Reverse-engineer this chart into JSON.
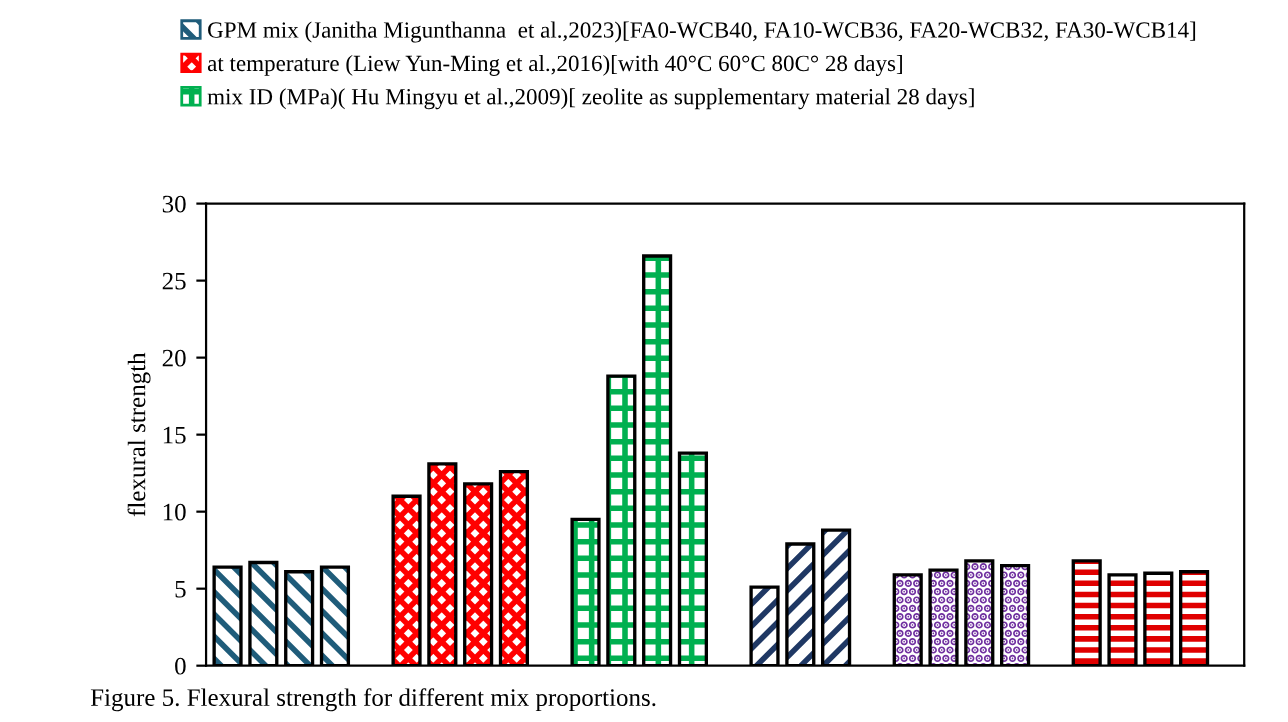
{
  "chart_data": {
    "type": "bar",
    "ylabel": "flexural strength",
    "categories": [
      null,
      null,
      null,
      null,
      null,
      null,
      null,
      null,
      null,
      null,
      null,
      null,
      null,
      null,
      null,
      null,
      null,
      null,
      null,
      null,
      null,
      null,
      null,
      null,
      null,
      null,
      null,
      null,
      null
    ],
    "series": [
      {
        "name": "GPM mix (Janitha Migunthanna  et al.,2023)[FA0-WCB40, FA10-WCB36, FA20-WCB32, FA30-WCB14]",
        "color": "#1f5c7a",
        "values": [
          6.4,
          6.7,
          6.1,
          6.4,
          null,
          null,
          null,
          null,
          null,
          null,
          null,
          null,
          null,
          null,
          null,
          null,
          null,
          null,
          null,
          null,
          null,
          null,
          null,
          null,
          null,
          null,
          null,
          null,
          null
        ]
      },
      {
        "name": "at temperature (Liew Yun-Ming et al.,2016)[with 40°C 60°C 80C° 28 days]",
        "color": "#ff0000",
        "values": [
          null,
          null,
          null,
          null,
          null,
          11.0,
          13.1,
          11.8,
          12.6,
          null,
          null,
          null,
          null,
          null,
          null,
          null,
          null,
          null,
          null,
          null,
          null,
          null,
          null,
          null,
          null,
          null,
          null,
          null,
          null
        ]
      },
      {
        "name": "mix ID (MPa)( Hu Mingyu et al.,2009)[ zeolite as supplementary material 28 days]",
        "color": "#00b050",
        "values": [
          null,
          null,
          null,
          null,
          null,
          null,
          null,
          null,
          null,
          null,
          9.5,
          18.8,
          26.6,
          13.8,
          null,
          null,
          null,
          null,
          null,
          null,
          null,
          null,
          null,
          null,
          null,
          null,
          null,
          null,
          null
        ]
      },
      {
        "color": "#1f3864",
        "values": [
          null,
          null,
          null,
          null,
          null,
          null,
          null,
          null,
          null,
          null,
          null,
          null,
          null,
          null,
          null,
          5.1,
          7.9,
          8.8,
          null,
          null,
          null,
          null,
          null,
          null,
          null,
          null,
          null,
          null,
          null
        ]
      },
      {
        "color": "#7030a0",
        "values": [
          null,
          null,
          null,
          null,
          null,
          null,
          null,
          null,
          null,
          null,
          null,
          null,
          null,
          null,
          null,
          null,
          null,
          null,
          null,
          5.9,
          6.2,
          6.8,
          6.5,
          null,
          null,
          null,
          null,
          null,
          null
        ]
      },
      {
        "color": "#e00000",
        "values": [
          null,
          null,
          null,
          null,
          null,
          null,
          null,
          null,
          null,
          null,
          null,
          null,
          null,
          null,
          null,
          null,
          null,
          null,
          null,
          null,
          null,
          null,
          null,
          null,
          6.8,
          5.9,
          6.0,
          6.1,
          null
        ]
      }
    ],
    "ylim": [
      0,
      30
    ],
    "yticks": [
      0,
      5,
      10,
      15,
      20,
      25,
      30
    ],
    "grid": false,
    "legend": "top",
    "annotations": [
      "Figure 5. Flexural strength for different mix proportions."
    ]
  }
}
